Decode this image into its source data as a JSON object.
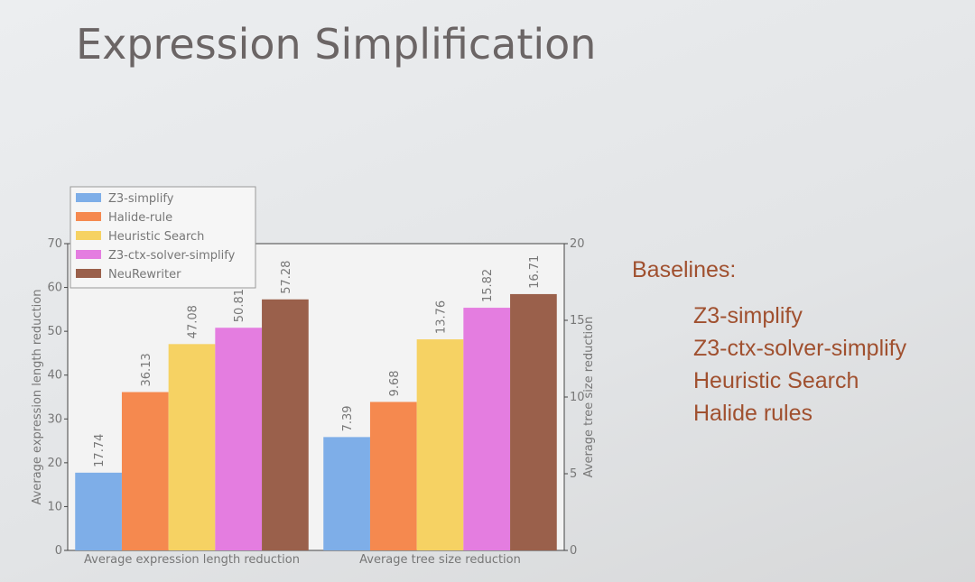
{
  "slide": {
    "title": "Expression Simplification",
    "baselines": {
      "heading": "Baselines:",
      "items": [
        "Z3-simplify",
        "Z3-ctx-solver-simplify",
        "Heuristic Search",
        "Halide rules"
      ]
    }
  },
  "chart_data": {
    "type": "bar",
    "categories": [
      "Average expression length reduction",
      "Average tree size reduction"
    ],
    "category_axis": [
      "y",
      "y2"
    ],
    "ylabel": "Average expression length reduction",
    "y2label": "Average tree size reduction",
    "ylim": [
      0,
      70
    ],
    "yticks": [
      0,
      10,
      20,
      30,
      40,
      50,
      60,
      70
    ],
    "y2lim": [
      0,
      20
    ],
    "y2ticks": [
      0,
      5,
      10,
      15,
      20
    ],
    "legend": "upper left",
    "series": [
      {
        "name": "Z3-simplify",
        "color": "#7eaee8",
        "values": [
          17.74,
          7.39
        ]
      },
      {
        "name": "Halide-rule",
        "color": "#f5894f",
        "values": [
          36.13,
          9.68
        ]
      },
      {
        "name": "Heuristic Search",
        "color": "#f6d263",
        "values": [
          47.08,
          13.76
        ]
      },
      {
        "name": "Z3-ctx-solver-simplify",
        "color": "#e47de0",
        "values": [
          50.81,
          15.82
        ]
      },
      {
        "name": "NeuRewriter",
        "color": "#9a604b",
        "values": [
          57.28,
          16.71
        ]
      }
    ]
  }
}
